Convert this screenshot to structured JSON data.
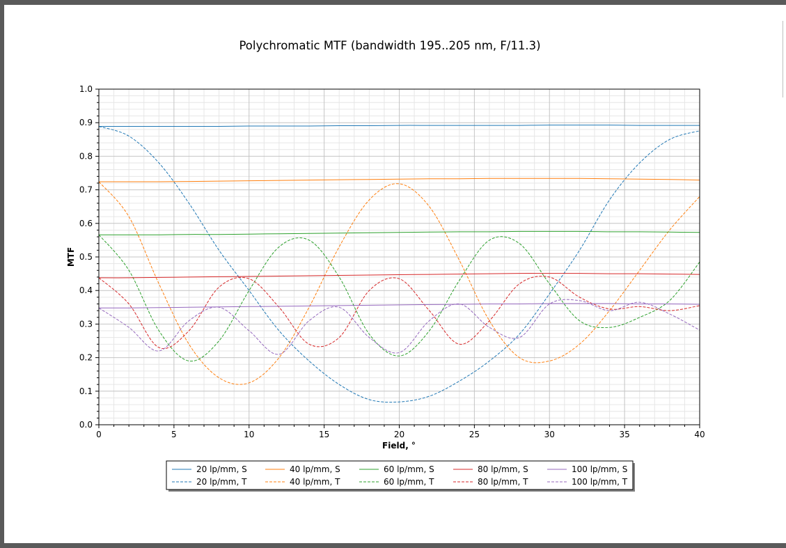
{
  "chart_data": {
    "type": "line",
    "title": "Polychromatic MTF (bandwidth 195..205 nm, F/11.3)",
    "xlabel": "Field, °",
    "ylabel": "MTF",
    "xlim": [
      0,
      40
    ],
    "ylim": [
      0,
      1.0
    ],
    "xticks": [
      "0",
      "5",
      "10",
      "15",
      "20",
      "25",
      "30",
      "35",
      "40"
    ],
    "yticks": [
      "0.0",
      "0.1",
      "0.2",
      "0.3",
      "0.4",
      "0.5",
      "0.6",
      "0.7",
      "0.8",
      "0.9",
      "1.0"
    ],
    "grid": true,
    "legend_position": "bottom-center",
    "x": [
      0,
      2,
      4,
      6,
      8,
      10,
      12,
      14,
      16,
      18,
      20,
      22,
      24,
      26,
      28,
      30,
      32,
      34,
      36,
      38,
      40
    ],
    "series": [
      {
        "name": "20 lp/mm, S",
        "color": "#1f77b4",
        "style": "solid",
        "values": [
          0.889,
          0.889,
          0.889,
          0.889,
          0.889,
          0.89,
          0.89,
          0.89,
          0.891,
          0.891,
          0.892,
          0.892,
          0.892,
          0.892,
          0.892,
          0.893,
          0.893,
          0.893,
          0.892,
          0.892,
          0.892
        ]
      },
      {
        "name": "20 lp/mm, T",
        "color": "#1f77b4",
        "style": "dashed",
        "values": [
          0.889,
          0.86,
          0.78,
          0.66,
          0.52,
          0.4,
          0.28,
          0.19,
          0.12,
          0.075,
          0.068,
          0.085,
          0.13,
          0.19,
          0.27,
          0.39,
          0.52,
          0.67,
          0.78,
          0.85,
          0.876
        ]
      },
      {
        "name": "40 lp/mm, S",
        "color": "#ff7f0e",
        "style": "solid",
        "values": [
          0.724,
          0.724,
          0.724,
          0.725,
          0.726,
          0.727,
          0.728,
          0.729,
          0.73,
          0.731,
          0.732,
          0.733,
          0.733,
          0.734,
          0.734,
          0.734,
          0.734,
          0.733,
          0.732,
          0.731,
          0.729
        ]
      },
      {
        "name": "40 lp/mm, T",
        "color": "#ff7f0e",
        "style": "dashed",
        "values": [
          0.724,
          0.62,
          0.42,
          0.24,
          0.14,
          0.125,
          0.2,
          0.35,
          0.53,
          0.67,
          0.718,
          0.65,
          0.49,
          0.31,
          0.2,
          0.19,
          0.24,
          0.34,
          0.46,
          0.58,
          0.68
        ]
      },
      {
        "name": "60 lp/mm, S",
        "color": "#2ca02c",
        "style": "solid",
        "values": [
          0.566,
          0.566,
          0.566,
          0.567,
          0.567,
          0.568,
          0.569,
          0.57,
          0.571,
          0.572,
          0.573,
          0.574,
          0.575,
          0.575,
          0.576,
          0.576,
          0.576,
          0.575,
          0.575,
          0.574,
          0.573
        ]
      },
      {
        "name": "60 lp/mm, T",
        "color": "#2ca02c",
        "style": "dashed",
        "values": [
          0.566,
          0.46,
          0.28,
          0.19,
          0.25,
          0.4,
          0.53,
          0.55,
          0.44,
          0.27,
          0.205,
          0.28,
          0.43,
          0.55,
          0.54,
          0.42,
          0.31,
          0.29,
          0.32,
          0.37,
          0.485
        ]
      },
      {
        "name": "80 lp/mm, S",
        "color": "#d62728",
        "style": "solid",
        "values": [
          0.438,
          0.438,
          0.439,
          0.44,
          0.441,
          0.442,
          0.443,
          0.444,
          0.445,
          0.446,
          0.447,
          0.448,
          0.449,
          0.45,
          0.451,
          0.451,
          0.451,
          0.45,
          0.45,
          0.449,
          0.448
        ]
      },
      {
        "name": "80 lp/mm, T",
        "color": "#d62728",
        "style": "dashed",
        "values": [
          0.438,
          0.36,
          0.23,
          0.28,
          0.41,
          0.435,
          0.35,
          0.24,
          0.26,
          0.4,
          0.435,
          0.34,
          0.24,
          0.31,
          0.42,
          0.44,
          0.38,
          0.345,
          0.352,
          0.34,
          0.355
        ]
      },
      {
        "name": "100 lp/mm, S",
        "color": "#9467bd",
        "style": "solid",
        "values": [
          0.348,
          0.348,
          0.349,
          0.35,
          0.351,
          0.352,
          0.353,
          0.354,
          0.355,
          0.356,
          0.357,
          0.358,
          0.359,
          0.36,
          0.36,
          0.361,
          0.361,
          0.361,
          0.36,
          0.36,
          0.359
        ]
      },
      {
        "name": "100 lp/mm, T",
        "color": "#9467bd",
        "style": "dashed",
        "values": [
          0.348,
          0.29,
          0.22,
          0.31,
          0.35,
          0.28,
          0.21,
          0.31,
          0.35,
          0.26,
          0.215,
          0.31,
          0.36,
          0.29,
          0.26,
          0.36,
          0.37,
          0.34,
          0.365,
          0.33,
          0.282
        ]
      }
    ]
  }
}
